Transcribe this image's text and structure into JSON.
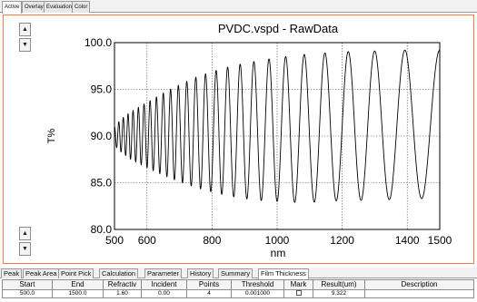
{
  "top_tabs": [
    "Active",
    "Overlay",
    "Evaluation",
    "Color"
  ],
  "side_buttons": {
    "up": "▲",
    "down": "▼"
  },
  "chart_data": {
    "type": "line",
    "title": "PVDC.vspd - RawData",
    "xlabel": "nm",
    "ylabel": "T%",
    "xlim": [
      500,
      1500
    ],
    "ylim": [
      80,
      100
    ],
    "xticks": [
      "500",
      "600",
      "800",
      "1000",
      "1200",
      "1400",
      "1500"
    ],
    "yticks": [
      "80.0",
      "85.0",
      "90.0",
      "95.0",
      "100.0"
    ],
    "grid": true,
    "series": [
      {
        "x": [
          500,
          520,
          550,
          600,
          650,
          700,
          750,
          800,
          850,
          900,
          950,
          1000,
          1050,
          1100,
          1150,
          1200,
          1250,
          1300,
          1350,
          1400,
          1450,
          1500
        ],
        "upper": [
          91.0,
          91.8,
          92.6,
          93.6,
          94.6,
          95.5,
          96.3,
          96.9,
          97.4,
          97.8,
          98.1,
          98.4,
          98.6,
          98.8,
          98.9,
          99.0,
          99.1,
          99.1,
          99.2,
          99.2,
          99.2,
          99.2
        ],
        "lower": [
          89.0,
          88.3,
          87.5,
          86.6,
          85.8,
          85.1,
          84.5,
          84.0,
          83.6,
          83.3,
          83.1,
          83.0,
          82.9,
          82.9,
          83.0,
          83.1,
          83.1,
          83.2,
          83.2,
          83.3,
          83.3,
          83.4
        ],
        "period_factor": 19.5
      }
    ],
    "color": "#000000"
  },
  "panel_tabs": [
    "Peak",
    "Peak Area",
    "Point Pick",
    "Calculation",
    "Parameter",
    "History",
    "Summary",
    "Film Thickness"
  ],
  "table": {
    "headers": [
      "Start",
      "End",
      "Refractiv",
      "Incident",
      "Points",
      "Threshold",
      "Mark",
      "Result(um)",
      "Description"
    ],
    "rows": [
      [
        "500.0",
        "1500.0",
        "1.60",
        "0.00",
        "4",
        "0.001000",
        "",
        "9.322",
        ""
      ]
    ]
  }
}
